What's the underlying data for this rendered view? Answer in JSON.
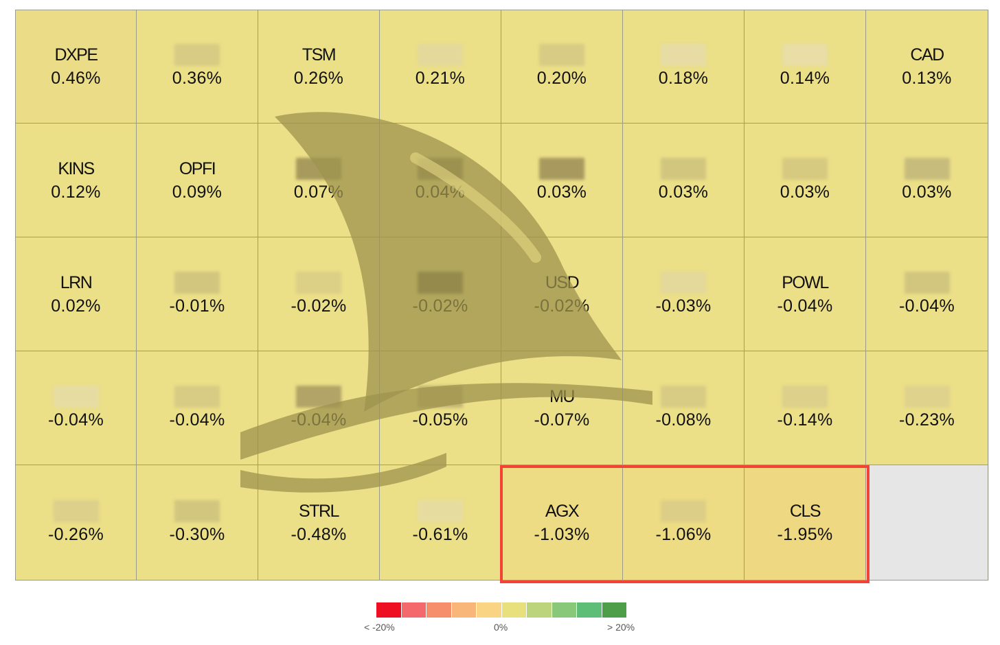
{
  "chart_data": {
    "type": "heatmap",
    "columns": 8,
    "rows": 5,
    "cells": [
      {
        "ticker": "DXPE",
        "change": "0.46%",
        "value": 0.46,
        "color": "#ebdd88"
      },
      {
        "ticker": "",
        "change": "0.36%",
        "value": 0.36,
        "color": "#ebdf88",
        "blur_color": "#d8cc84"
      },
      {
        "ticker": "TSM",
        "change": "0.26%",
        "value": 0.26,
        "color": "#ebdf88"
      },
      {
        "ticker": "",
        "change": "0.21%",
        "value": 0.21,
        "color": "#ebdf88",
        "blur_color": "#e4d99a"
      },
      {
        "ticker": "",
        "change": "0.20%",
        "value": 0.2,
        "color": "#ebdf88",
        "blur_color": "#d8cc84"
      },
      {
        "ticker": "",
        "change": "0.18%",
        "value": 0.18,
        "color": "#ebdf88",
        "blur_color": "#e6dca4"
      },
      {
        "ticker": "",
        "change": "0.14%",
        "value": 0.14,
        "color": "#ebdf88",
        "blur_color": "#e8dea6"
      },
      {
        "ticker": "CAD",
        "change": "0.13%",
        "value": 0.13,
        "color": "#ebdf88"
      },
      {
        "ticker": "KINS",
        "change": "0.12%",
        "value": 0.12,
        "color": "#ebdf88"
      },
      {
        "ticker": "OPFI",
        "change": "0.09%",
        "value": 0.09,
        "color": "#ebdf88"
      },
      {
        "ticker": "",
        "change": "0.07%",
        "value": 0.07,
        "color": "#ebdf88",
        "blur_color": "#a89a5c"
      },
      {
        "ticker": "",
        "change": "0.04%",
        "value": 0.04,
        "color": "#ebdf88",
        "blur_color": "#9a8d58"
      },
      {
        "ticker": "",
        "change": "0.03%",
        "value": 0.03,
        "color": "#ebdf88",
        "blur_color": "#a89a5e"
      },
      {
        "ticker": "",
        "change": "0.03%",
        "value": 0.03,
        "color": "#ebdf88",
        "blur_color": "#d2c67e"
      },
      {
        "ticker": "",
        "change": "0.03%",
        "value": 0.03,
        "color": "#ebdf88",
        "blur_color": "#d6ca80"
      },
      {
        "ticker": "",
        "change": "0.03%",
        "value": 0.03,
        "color": "#ebdf88",
        "blur_color": "#c8bc7c"
      },
      {
        "ticker": "LRN",
        "change": "0.02%",
        "value": 0.02,
        "color": "#ebdf88"
      },
      {
        "ticker": "",
        "change": "-0.01%",
        "value": -0.01,
        "color": "#ebdf88",
        "blur_color": "#d2c67e"
      },
      {
        "ticker": "",
        "change": "-0.02%",
        "value": -0.02,
        "color": "#ebdf88",
        "blur_color": "#dccf86"
      },
      {
        "ticker": "",
        "change": "-0.02%",
        "value": -0.02,
        "color": "#ebdf88",
        "blur_color": "#7c7048"
      },
      {
        "ticker": "USD",
        "change": "-0.02%",
        "value": -0.02,
        "color": "#ebdf88"
      },
      {
        "ticker": "",
        "change": "-0.03%",
        "value": -0.03,
        "color": "#ebdf88",
        "blur_color": "#e4d89a"
      },
      {
        "ticker": "POWL",
        "change": "-0.04%",
        "value": -0.04,
        "color": "#ebdf88"
      },
      {
        "ticker": "",
        "change": "-0.04%",
        "value": -0.04,
        "color": "#ebdf88",
        "blur_color": "#d2c67e"
      },
      {
        "ticker": "",
        "change": "-0.04%",
        "value": -0.04,
        "color": "#ebdf88",
        "blur_color": "#e6dca2"
      },
      {
        "ticker": "",
        "change": "-0.04%",
        "value": -0.04,
        "color": "#ebdf88",
        "blur_color": "#d8cc84"
      },
      {
        "ticker": "",
        "change": "-0.04%",
        "value": -0.04,
        "color": "#ebdf88",
        "blur_color": "#b2a466"
      },
      {
        "ticker": "",
        "change": "-0.05%",
        "value": -0.05,
        "color": "#ebdf88",
        "blur_color": "#c2b472"
      },
      {
        "ticker": "MU",
        "change": "-0.07%",
        "value": -0.07,
        "color": "#ebdf88"
      },
      {
        "ticker": "",
        "change": "-0.08%",
        "value": -0.08,
        "color": "#ebdf88",
        "blur_color": "#d8cc84"
      },
      {
        "ticker": "",
        "change": "-0.14%",
        "value": -0.14,
        "color": "#ebdf88",
        "blur_color": "#dcd08a"
      },
      {
        "ticker": "",
        "change": "-0.23%",
        "value": -0.23,
        "color": "#ebdf88",
        "blur_color": "#dfd28c"
      },
      {
        "ticker": "",
        "change": "-0.26%",
        "value": -0.26,
        "color": "#ebdf88",
        "blur_color": "#dcd08a"
      },
      {
        "ticker": "",
        "change": "-0.30%",
        "value": -0.3,
        "color": "#ebdf88",
        "blur_color": "#d2c67e"
      },
      {
        "ticker": "STRL",
        "change": "-0.48%",
        "value": -0.48,
        "color": "#ebdf88"
      },
      {
        "ticker": "",
        "change": "-0.61%",
        "value": -0.61,
        "color": "#ebdf88",
        "blur_color": "#e6dca0"
      },
      {
        "ticker": "AGX",
        "change": "-1.03%",
        "value": -1.03,
        "color": "#eddc84"
      },
      {
        "ticker": "",
        "change": "-1.06%",
        "value": -1.06,
        "color": "#eddc84",
        "blur_color": "#dcce86"
      },
      {
        "ticker": "CLS",
        "change": "-1.95%",
        "value": -1.95,
        "color": "#eed882"
      }
    ],
    "legend": {
      "min_label": "< -20%",
      "mid_label": "0%",
      "max_label": "> 20%",
      "colors": [
        "#ee0f23",
        "#f46a6c",
        "#f68e6c",
        "#f8b678",
        "#f9d583",
        "#e8e07c",
        "#bcd47c",
        "#88c878",
        "#5ebd76",
        "#4d9d49"
      ]
    },
    "watermark": {
      "icon": "shark-fin-icon",
      "color": "#9d934d"
    },
    "highlight": {
      "color": "#f44336",
      "cells": [
        "AGX",
        "-1.06%",
        "CLS"
      ]
    }
  }
}
